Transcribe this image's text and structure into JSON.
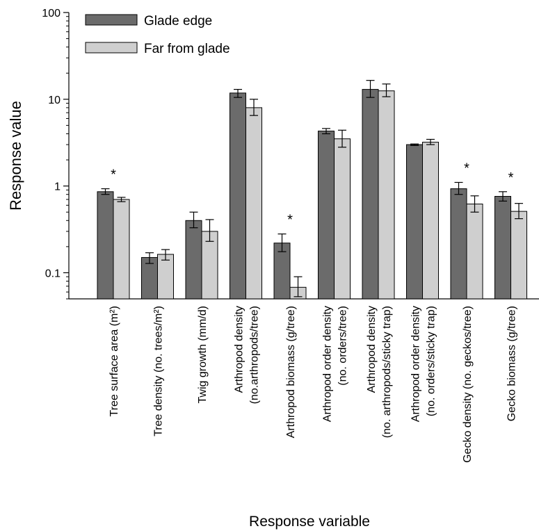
{
  "chart_data": {
    "type": "bar",
    "title": "",
    "xlabel": "Response variable",
    "ylabel": "Response value",
    "yscale": "log",
    "ylim": [
      0.05,
      100
    ],
    "yticks": [
      {
        "value": 0.1,
        "label": "0.1"
      },
      {
        "value": 1,
        "label": "1"
      },
      {
        "value": 10,
        "label": "10"
      },
      {
        "value": 100,
        "label": "100"
      }
    ],
    "legend_position": "top-left",
    "grid": false,
    "categories": [
      [
        "Tree surface area (m²)"
      ],
      [
        "Tree density (no. trees/m²)"
      ],
      [
        "Twig growth (mm/d)"
      ],
      [
        "Arthropod density",
        "(no.arthropods/tree)"
      ],
      [
        "Arthropod biomass (g/tree)"
      ],
      [
        "Arthropod order density",
        "(no. orders/tree)"
      ],
      [
        "Arthropod density",
        "(no. arthropods/sticky trap)"
      ],
      [
        "Arthropod order density",
        "(no. orders/sticky trap)"
      ],
      [
        "Gecko density (no. geckos/tree)"
      ],
      [
        "Gecko biomass (g/tree)"
      ]
    ],
    "series": [
      {
        "name": "Glade edge",
        "color": "#6b6b6b",
        "values": [
          0.86,
          0.15,
          0.4,
          11.8,
          0.22,
          4.3,
          13.0,
          3.0,
          0.93,
          0.76
        ],
        "err_low": [
          0.8,
          0.128,
          0.33,
          10.5,
          0.175,
          4.0,
          10.5,
          2.93,
          0.8,
          0.67
        ],
        "err_high": [
          0.93,
          0.17,
          0.5,
          13.0,
          0.28,
          4.6,
          16.5,
          3.05,
          1.1,
          0.86
        ]
      },
      {
        "name": "Far from glade",
        "color": "#cfcfcf",
        "values": [
          0.7,
          0.163,
          0.3,
          8.0,
          0.068,
          3.5,
          12.5,
          3.2,
          0.62,
          0.51
        ],
        "err_low": [
          0.66,
          0.14,
          0.23,
          6.5,
          0.053,
          2.8,
          10.7,
          3.0,
          0.5,
          0.42
        ],
        "err_high": [
          0.74,
          0.185,
          0.41,
          10.0,
          0.09,
          4.4,
          15.0,
          3.45,
          0.77,
          0.63
        ]
      }
    ],
    "annotations": [
      {
        "category_index": 0,
        "text": "*"
      },
      {
        "category_index": 4,
        "text": "*"
      },
      {
        "category_index": 8,
        "text": "*"
      },
      {
        "category_index": 9,
        "text": "*"
      }
    ]
  }
}
